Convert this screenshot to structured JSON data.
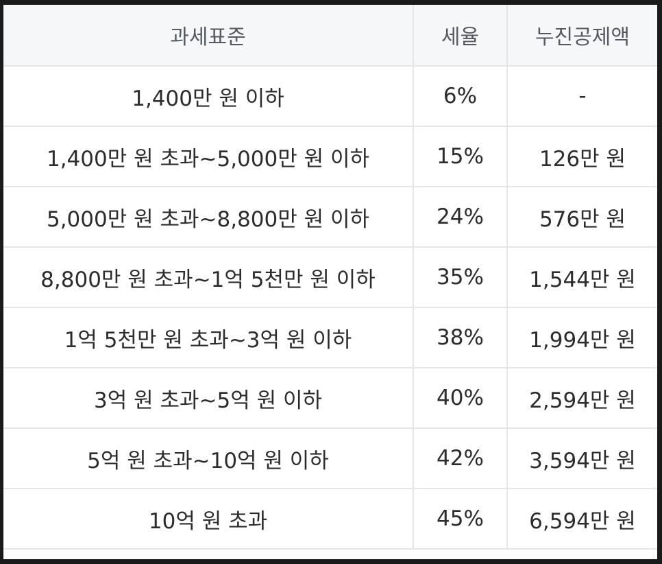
{
  "table": {
    "headers": [
      "과세표준",
      "세율",
      "누진공제액"
    ],
    "rows": [
      [
        "1,400만 원 이하",
        "6%",
        "-"
      ],
      [
        "1,400만 원 초과~5,000만 원 이하",
        "15%",
        "126만 원"
      ],
      [
        "5,000만 원 초과~8,800만 원 이하",
        "24%",
        "576만 원"
      ],
      [
        "8,800만 원 초과~1억 5천만 원 이하",
        "35%",
        "1,544만 원"
      ],
      [
        "1억 5천만 원 초과~3억 원 이하",
        "38%",
        "1,994만 원"
      ],
      [
        "3억 원 초과~5억 원 이하",
        "40%",
        "2,594만 원"
      ],
      [
        "5억 원 초과~10억 원 이하",
        "42%",
        "3,594만 원"
      ],
      [
        "10억 원 초과",
        "45%",
        "6,594만 원"
      ]
    ]
  }
}
